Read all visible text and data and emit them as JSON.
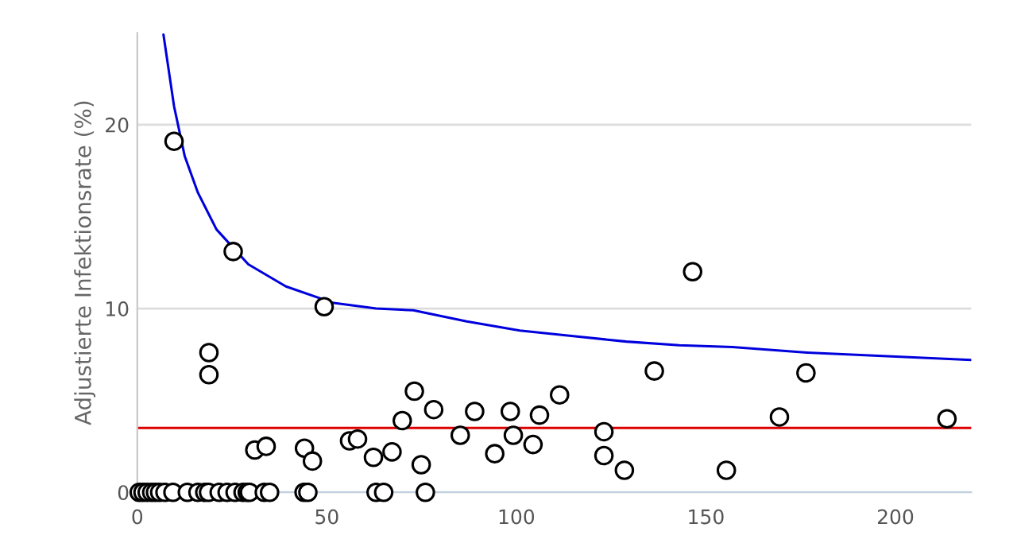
{
  "chart_data": {
    "type": "scatter",
    "ylabel": "Adjustierte Infektionsrate (%)",
    "xlim": [
      0,
      220
    ],
    "ylim": [
      0,
      25
    ],
    "xticks": [
      0,
      50,
      100,
      150,
      200
    ],
    "yticks": [
      0,
      10,
      20
    ],
    "grid": "y",
    "legend": false,
    "series": [
      {
        "marker": "circle",
        "color": "#000000",
        "x": [
          0.5,
          1.5,
          2.6,
          3.8,
          4.8,
          5.9,
          7.3,
          9.4,
          13.2,
          16,
          17.8,
          18.8,
          21.6,
          23.7,
          25.8,
          27.9,
          29,
          29.6,
          33.5,
          34.9,
          44,
          45,
          63,
          65,
          76,
          9.7,
          25.3,
          49.3,
          18.9,
          18.9,
          31,
          34,
          44.1,
          46.2,
          56,
          58.1,
          62.3,
          67.2,
          69.9,
          73.1,
          74.9,
          78.2,
          85.2,
          89,
          94.3,
          98.4,
          99.2,
          104.4,
          106.1,
          111.4,
          123.1,
          123.1,
          128.5,
          136.4,
          146.5,
          155.4,
          169.4,
          176.4,
          213.6
        ],
        "values": [
          0,
          0,
          0,
          0,
          0,
          0,
          0,
          0,
          0,
          0,
          0,
          0,
          0,
          0,
          0,
          0,
          0,
          0,
          0,
          0,
          0,
          0,
          0,
          0,
          0,
          19.1,
          13.1,
          10.1,
          7.6,
          6.4,
          2.3,
          2.5,
          2.4,
          1.7,
          2.8,
          2.9,
          1.9,
          2.2,
          3.9,
          5.5,
          1.5,
          4.5,
          3.1,
          4.4,
          2.1,
          4.4,
          3.1,
          2.6,
          4.2,
          5.3,
          3.3,
          2.0,
          1.2,
          6.6,
          12.0,
          1.2,
          4.1,
          6.5,
          4.0
        ]
      },
      {
        "type": "line",
        "marker": "none",
        "color": "#0000dd",
        "x": [
          6.9,
          9.7,
          12.5,
          16,
          20.9,
          29.3,
          39.2,
          51.8,
          63,
          72.8,
          86.9,
          100.9,
          115,
          129,
          143,
          157,
          176.7,
          220
        ],
        "values": [
          24.9,
          21.0,
          18.3,
          16.3,
          14.3,
          12.4,
          11.2,
          10.3,
          10.0,
          9.9,
          9.3,
          8.8,
          8.5,
          8.2,
          8.0,
          7.9,
          7.6,
          7.2
        ]
      }
    ],
    "ref_lines": [
      {
        "axis": "y",
        "value": 3.5,
        "color": "#dd0000"
      }
    ]
  }
}
